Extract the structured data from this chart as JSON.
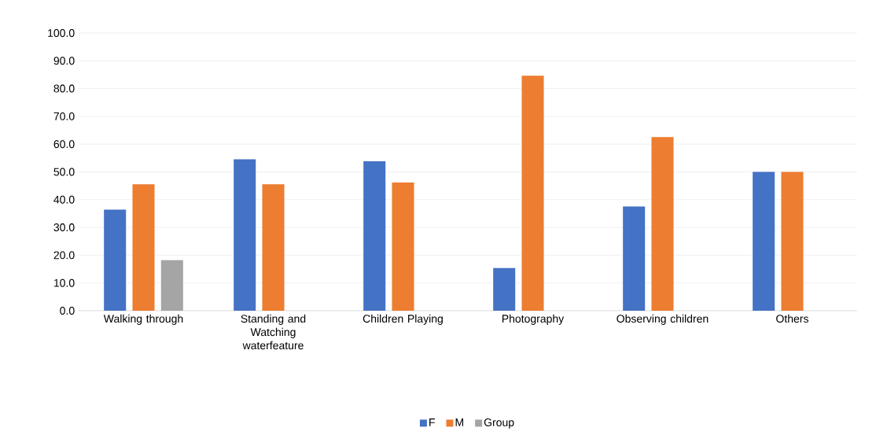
{
  "chart_data": {
    "type": "bar",
    "categories": [
      "Walking through",
      "Standing and Watching waterfeature",
      "Children Playing",
      "Photography",
      "Observing children",
      "Others"
    ],
    "series": [
      {
        "name": "F",
        "color": "#4472c4",
        "values": [
          36.4,
          54.5,
          53.8,
          15.4,
          37.5,
          50.0
        ]
      },
      {
        "name": "M",
        "color": "#ed7d31",
        "values": [
          45.5,
          45.5,
          46.2,
          84.6,
          62.5,
          50.0
        ]
      },
      {
        "name": "Group",
        "color": "#a5a5a5",
        "values": [
          18.2,
          null,
          null,
          null,
          null,
          null
        ]
      }
    ],
    "ylim": [
      0,
      100
    ],
    "yticks": [
      {
        "value": 0,
        "label": "0.0"
      },
      {
        "value": 10,
        "label": "10.0"
      },
      {
        "value": 20,
        "label": "20.0"
      },
      {
        "value": 30,
        "label": "30.0"
      },
      {
        "value": 40,
        "label": "40.0"
      },
      {
        "value": 50,
        "label": "50.0"
      },
      {
        "value": 60,
        "label": "60.0"
      },
      {
        "value": 70,
        "label": "70.0"
      },
      {
        "value": 80,
        "label": "80.0"
      },
      {
        "value": 90,
        "label": "90.0"
      },
      {
        "value": 100,
        "label": "100.0"
      }
    ],
    "grid": "y",
    "legend": "bottom"
  }
}
